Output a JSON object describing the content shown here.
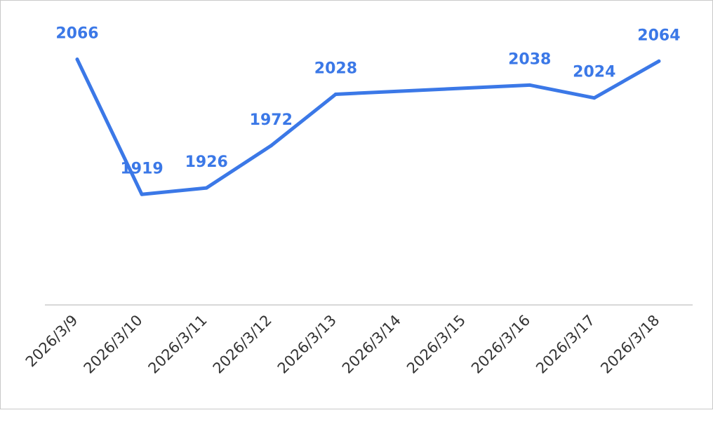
{
  "chart_data": {
    "type": "line",
    "categories": [
      "2026/3/9",
      "2026/3/10",
      "2026/3/11",
      "2026/3/12",
      "2026/3/13",
      "2026/3/14",
      "2026/3/15",
      "2026/3/16",
      "2026/3/17",
      "2026/3/18"
    ],
    "values": [
      2066,
      1919,
      1926,
      1972,
      2028,
      null,
      null,
      2038,
      2024,
      2064
    ],
    "value_labels": [
      "2066",
      "1919",
      "1926",
      "1972",
      "2028",
      "",
      "",
      "2038",
      "2024",
      "2064"
    ],
    "title": "",
    "xlabel": "",
    "ylabel": "",
    "ylim": [
      1820,
      2110
    ],
    "grid": false,
    "legend": "none",
    "line_color": "#3b78e7",
    "drop_line_color": "#b9cdf2",
    "axis_color": "#cccccc"
  }
}
